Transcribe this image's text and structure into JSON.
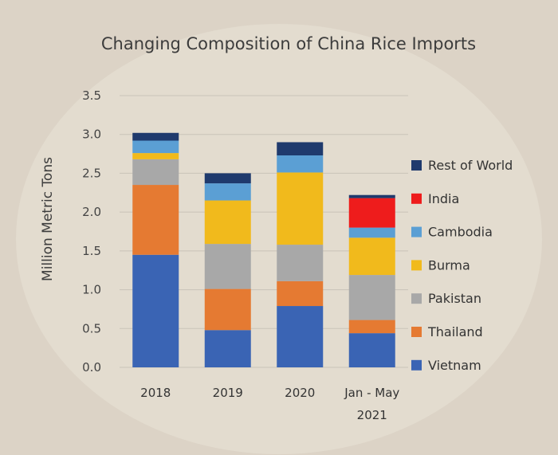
{
  "chart_data": {
    "type": "bar",
    "stacked": true,
    "title": "Changing Composition of China Rice Imports",
    "xlabel": "",
    "ylabel": "Million Metric Tons",
    "ylim": [
      0,
      3.5
    ],
    "yticks": [
      "0.0",
      "0.5",
      "1.0",
      "1.5",
      "2.0",
      "2.5",
      "3.0",
      "3.5"
    ],
    "categories": [
      "2018",
      "2019",
      "2020",
      "Jan - May|2021"
    ],
    "grid": true,
    "legend_position": "right",
    "series": [
      {
        "name": "Vietnam",
        "color": "#3a64b4",
        "values": [
          1.45,
          0.48,
          0.79,
          0.44
        ]
      },
      {
        "name": "Thailand",
        "color": "#e57a32",
        "values": [
          0.9,
          0.53,
          0.32,
          0.17
        ]
      },
      {
        "name": "Pakistan",
        "color": "#a8a8a8",
        "values": [
          0.33,
          0.58,
          0.47,
          0.58
        ]
      },
      {
        "name": "Burma",
        "color": "#f1ba1c",
        "values": [
          0.08,
          0.56,
          0.93,
          0.48
        ]
      },
      {
        "name": "Cambodia",
        "color": "#5b9fd4",
        "values": [
          0.16,
          0.22,
          0.22,
          0.13
        ]
      },
      {
        "name": "India",
        "color": "#ee1c1c",
        "values": [
          0.0,
          0.0,
          0.0,
          0.38
        ]
      },
      {
        "name": "Rest of World",
        "color": "#1f3a6d",
        "values": [
          0.1,
          0.13,
          0.17,
          0.04
        ]
      }
    ]
  }
}
